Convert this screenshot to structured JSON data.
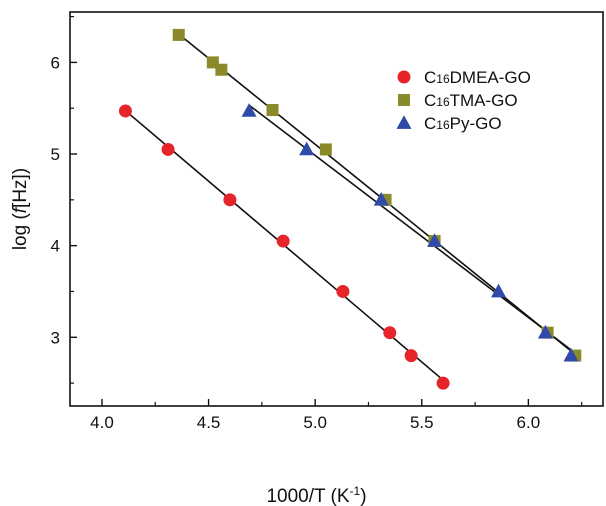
{
  "chart_data": {
    "type": "scatter",
    "xlabel": "1000/T (K⁻¹)",
    "ylabel": "log (f[Hz])",
    "xlim": [
      3.85,
      6.35
    ],
    "ylim": [
      2.25,
      6.55
    ],
    "x_ticks": [
      "4.0",
      "4.5",
      "5.0",
      "5.5",
      "6.0"
    ],
    "x_tick_values": [
      4.0,
      4.5,
      5.0,
      5.5,
      6.0
    ],
    "y_ticks": [
      "3",
      "4",
      "5",
      "6"
    ],
    "y_tick_values": [
      3,
      4,
      5,
      6
    ],
    "grid": false,
    "legend_position": "top-right",
    "series": [
      {
        "name": "C16DMEA-GO",
        "marker": "circle",
        "color": "#e8242b",
        "fit": true,
        "points": [
          [
            4.11,
            5.47
          ],
          [
            4.31,
            5.05
          ],
          [
            4.6,
            4.5
          ],
          [
            4.85,
            4.05
          ],
          [
            5.13,
            3.5
          ],
          [
            5.35,
            3.05
          ],
          [
            5.45,
            2.8
          ],
          [
            5.6,
            2.5
          ]
        ]
      },
      {
        "name": "C16TMA-GO",
        "marker": "square",
        "color": "#8a8a2a",
        "fit": true,
        "points": [
          [
            4.36,
            6.3
          ],
          [
            4.52,
            6.0
          ],
          [
            4.56,
            5.92
          ],
          [
            4.8,
            5.48
          ],
          [
            5.05,
            5.05
          ],
          [
            5.33,
            4.5
          ],
          [
            5.56,
            4.05
          ],
          [
            6.09,
            3.05
          ],
          [
            6.22,
            2.8
          ]
        ]
      },
      {
        "name": "C16Py-GO",
        "marker": "triangle",
        "color": "#2f4aa8",
        "fit": true,
        "points": [
          [
            4.69,
            5.47
          ],
          [
            4.96,
            5.05
          ],
          [
            5.31,
            4.5
          ],
          [
            5.56,
            4.05
          ],
          [
            5.86,
            3.5
          ],
          [
            6.08,
            3.05
          ],
          [
            6.2,
            2.8
          ]
        ]
      }
    ]
  }
}
